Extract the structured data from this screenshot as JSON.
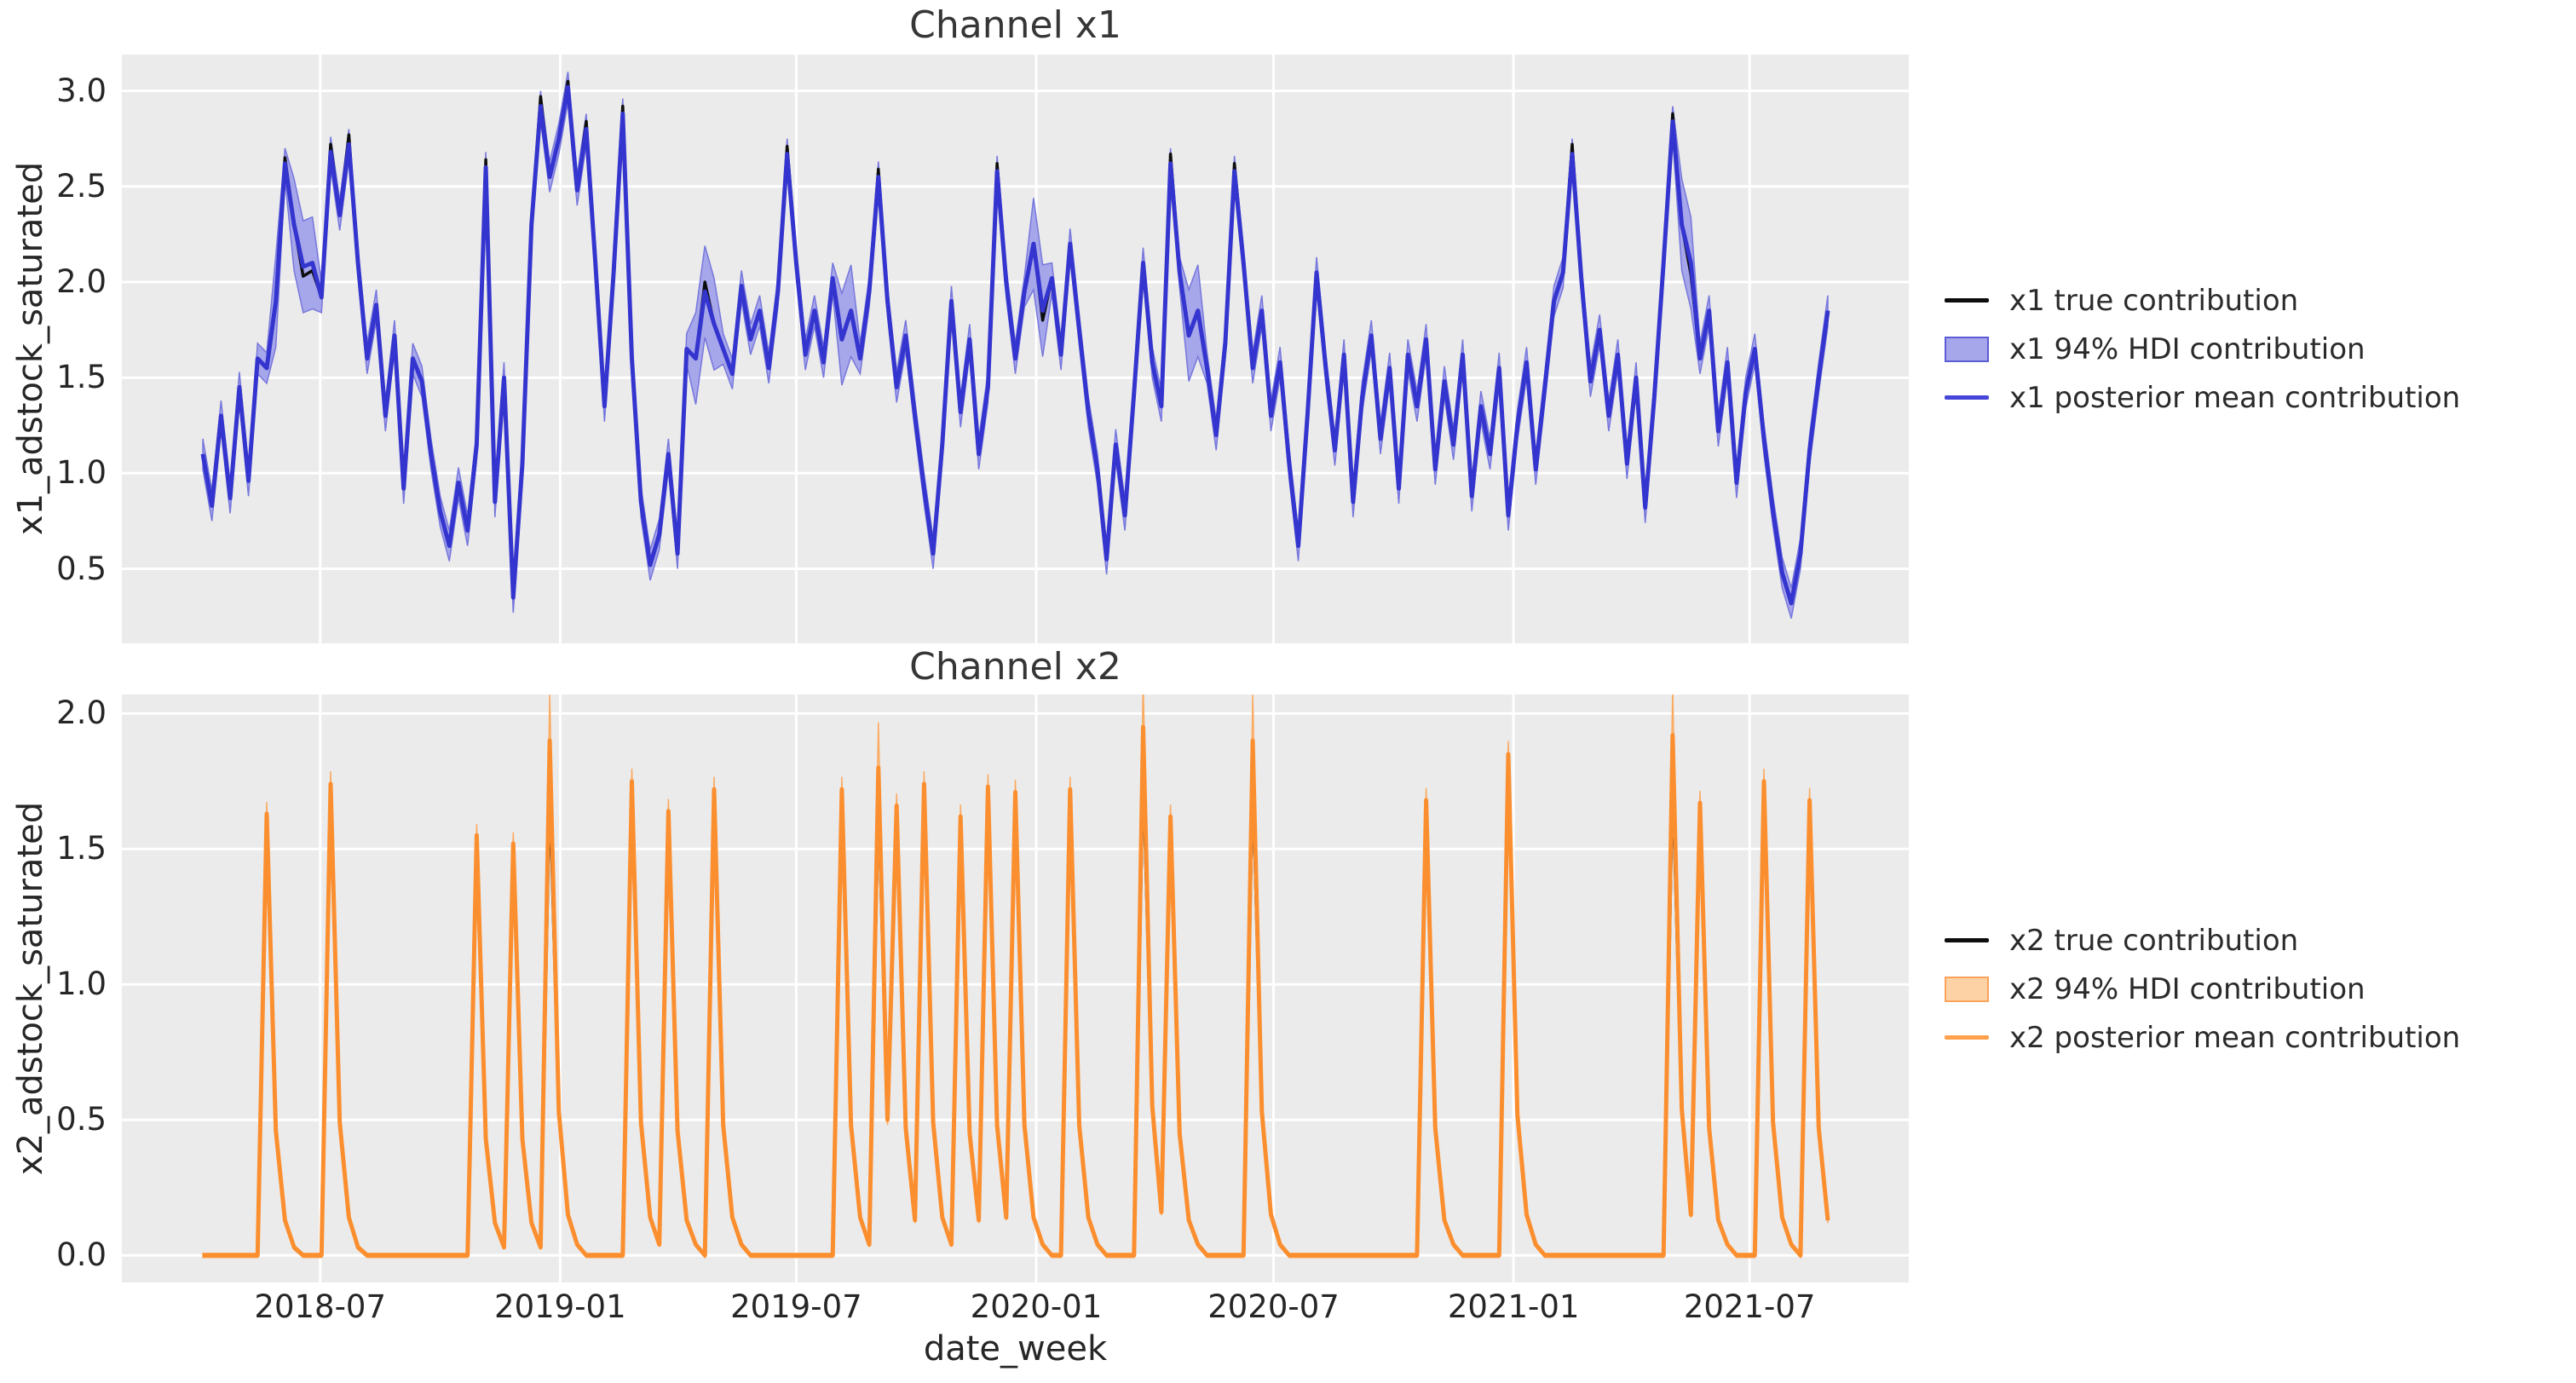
{
  "figure_title": "",
  "style_colors": {
    "panel_bg": "#ebebeb",
    "grid": "#ffffff",
    "text": "#262626"
  },
  "xaxis": {
    "label": "date_week",
    "n": 179,
    "start_date": "2018-04-02",
    "freq": "weekly",
    "ticks": [
      {
        "pos": 12.857,
        "label": "2018-07"
      },
      {
        "pos": 39.143,
        "label": "2019-01"
      },
      {
        "pos": 65.0,
        "label": "2019-07"
      },
      {
        "pos": 91.286,
        "label": "2020-01"
      },
      {
        "pos": 117.286,
        "label": "2020-07"
      },
      {
        "pos": 143.571,
        "label": "2021-01"
      },
      {
        "pos": 169.429,
        "label": "2021-07"
      }
    ]
  },
  "chart_data": [
    {
      "type": "line",
      "title": "Channel x1",
      "ylabel": "x1_adstock_saturated",
      "ylim": [
        0.11,
        3.19
      ],
      "yticks": [
        {
          "v": 0.5,
          "label": "0.5"
        },
        {
          "v": 1.0,
          "label": "1.0"
        },
        {
          "v": 1.5,
          "label": "1.5"
        },
        {
          "v": 2.0,
          "label": "2.0"
        },
        {
          "v": 2.5,
          "label": "2.5"
        },
        {
          "v": 3.0,
          "label": "3.0"
        }
      ],
      "colors": {
        "mean": "#3434cf",
        "band_fill": "#a6a6ea",
        "band_edge": "#7777dd",
        "true": "#0d0d0d"
      },
      "band": {
        "mode": "const",
        "default_half": 0.08,
        "wide_half": 0.24,
        "wide_indices": [
          8,
          10,
          11,
          12,
          54,
          55,
          56,
          70,
          71,
          91,
          92,
          108,
          109,
          162,
          163
        ]
      },
      "series": {
        "mean": [
          1.1,
          0.83,
          1.3,
          0.87,
          1.45,
          0.96,
          1.6,
          1.55,
          1.9,
          2.62,
          2.3,
          2.08,
          2.1,
          1.92,
          2.68,
          2.35,
          2.72,
          2.1,
          1.6,
          1.88,
          1.3,
          1.72,
          0.92,
          1.6,
          1.48,
          1.1,
          0.8,
          0.62,
          0.95,
          0.7,
          1.15,
          2.6,
          0.85,
          1.5,
          0.35,
          1.05,
          2.3,
          2.92,
          2.55,
          2.75,
          3.02,
          2.48,
          2.8,
          2.1,
          1.35,
          2.05,
          2.88,
          1.6,
          0.85,
          0.52,
          0.68,
          1.1,
          0.58,
          1.65,
          1.6,
          1.95,
          1.78,
          1.65,
          1.52,
          1.98,
          1.7,
          1.85,
          1.55,
          1.95,
          2.67,
          2.1,
          1.62,
          1.85,
          1.58,
          2.02,
          1.7,
          1.85,
          1.6,
          1.95,
          2.55,
          1.9,
          1.45,
          1.72,
          1.3,
          0.92,
          0.58,
          1.15,
          1.9,
          1.32,
          1.7,
          1.1,
          1.45,
          2.58,
          2.0,
          1.6,
          1.95,
          2.2,
          1.85,
          2.02,
          1.62,
          2.2,
          1.75,
          1.32,
          1.02,
          0.55,
          1.15,
          0.78,
          1.42,
          2.1,
          1.58,
          1.35,
          2.62,
          2.05,
          1.72,
          1.85,
          1.55,
          1.2,
          1.68,
          2.58,
          2.1,
          1.55,
          1.85,
          1.3,
          1.58,
          1.05,
          0.62,
          1.3,
          2.05,
          1.55,
          1.12,
          1.62,
          0.85,
          1.4,
          1.72,
          1.18,
          1.55,
          0.92,
          1.62,
          1.35,
          1.7,
          1.02,
          1.48,
          1.15,
          1.62,
          0.88,
          1.35,
          1.1,
          1.55,
          0.78,
          1.25,
          1.58,
          1.02,
          1.45,
          1.9,
          2.05,
          2.67,
          2.02,
          1.48,
          1.75,
          1.3,
          1.62,
          1.05,
          1.5,
          0.82,
          1.4,
          2.1,
          2.84,
          2.3,
          2.1,
          1.6,
          1.85,
          1.22,
          1.58,
          0.95,
          1.42,
          1.65,
          1.18,
          0.8,
          0.48,
          0.32,
          0.58,
          1.12,
          1.5,
          1.85
        ],
        "true_offsets": {
          "9": 0.03,
          "11": -0.05,
          "12": -0.04,
          "14": 0.04,
          "16": 0.05,
          "31": 0.04,
          "37": 0.05,
          "40": 0.03,
          "42": 0.04,
          "46": 0.04,
          "55": 0.05,
          "64": 0.04,
          "74": 0.04,
          "87": 0.04,
          "92": -0.05,
          "106": 0.05,
          "113": 0.04,
          "150": 0.05,
          "161": 0.04,
          "163": -0.06
        }
      },
      "legend_items": [
        {
          "type": "line",
          "color": "#0d0d0d",
          "label": "x1 true contribution"
        },
        {
          "type": "patch",
          "fill": "#a6a6ea",
          "edge": "#5c5cd6",
          "label": "x1 94% HDI contribution"
        },
        {
          "type": "line",
          "color": "#4646d8",
          "label": "x1 posterior mean contribution"
        }
      ]
    },
    {
      "type": "line",
      "title": "Channel x2",
      "ylabel": "x2_adstock_saturated",
      "ylim": [
        -0.1,
        2.07
      ],
      "yticks": [
        {
          "v": 0.0,
          "label": "0.0"
        },
        {
          "v": 0.5,
          "label": "0.5"
        },
        {
          "v": 1.0,
          "label": "1.0"
        },
        {
          "v": 1.5,
          "label": "1.5"
        },
        {
          "v": 2.0,
          "label": "2.0"
        }
      ],
      "colors": {
        "mean": "#fb8e2e",
        "band_fill": "#fdd3a5",
        "band_edge": "#fbaa60",
        "true": "#0d0d0d"
      },
      "band": {
        "mode": "scaled",
        "abs": 0.008,
        "rel": 0.022,
        "wide_upper_add": 0.12,
        "lower_min": -0.02,
        "wide_indices": [
          38,
          74,
          103,
          115,
          161
        ]
      },
      "series": {
        "mean": [
          0,
          0,
          0,
          0,
          0,
          0,
          0,
          1.63,
          0.46,
          0.13,
          0.03,
          0,
          0,
          0,
          1.74,
          0.49,
          0.14,
          0.03,
          0,
          0,
          0,
          0,
          0,
          0,
          0,
          0,
          0,
          0,
          0,
          0,
          1.55,
          0.43,
          0.12,
          0.03,
          1.52,
          0.43,
          0.12,
          0.03,
          1.9,
          0.53,
          0.15,
          0.04,
          0,
          0,
          0,
          0,
          0,
          1.75,
          0.49,
          0.14,
          0.04,
          1.64,
          0.46,
          0.13,
          0.04,
          0,
          1.72,
          0.48,
          0.14,
          0.04,
          0,
          0,
          0,
          0,
          0,
          0,
          0,
          0,
          0,
          0,
          1.72,
          0.48,
          0.14,
          0.04,
          1.8,
          0.5,
          1.66,
          0.47,
          0.13,
          1.74,
          0.49,
          0.14,
          0.04,
          1.62,
          0.45,
          0.13,
          1.73,
          0.48,
          0.14,
          1.71,
          0.48,
          0.14,
          0.04,
          0,
          0,
          1.72,
          0.48,
          0.14,
          0.04,
          0,
          0,
          0,
          0,
          1.95,
          0.55,
          0.16,
          1.62,
          0.45,
          0.13,
          0.04,
          0,
          0,
          0,
          0,
          0,
          1.9,
          0.53,
          0.15,
          0.04,
          0,
          0,
          0,
          0,
          0,
          0,
          0,
          0,
          0,
          0,
          0,
          0,
          0,
          0,
          0,
          1.68,
          0.47,
          0.13,
          0.04,
          0,
          0,
          0,
          0,
          0,
          1.85,
          0.52,
          0.15,
          0.04,
          0,
          0,
          0,
          0,
          0,
          0,
          0,
          0,
          0,
          0,
          0,
          0,
          0,
          0,
          1.92,
          0.54,
          0.15,
          1.67,
          0.47,
          0.13,
          0.04,
          0,
          0,
          0,
          1.75,
          0.49,
          0.14,
          0.04,
          0,
          1.68,
          0.47,
          0.13
        ],
        "true_offsets": {
          "7": -0.05,
          "14": -0.05,
          "30": -0.04,
          "34": -0.04,
          "38": -0.17,
          "47": -0.05,
          "51": -0.04,
          "56": -0.05,
          "70": -0.05,
          "74": -0.12,
          "76": -0.04,
          "79": -0.05,
          "83": -0.04,
          "86": -0.05,
          "89": -0.05,
          "95": -0.05,
          "103": -0.15,
          "106": -0.04,
          "115": -0.14,
          "134": -0.05,
          "143": -0.06,
          "161": -0.16,
          "164": -0.04,
          "171": -0.05,
          "176": -0.05
        }
      },
      "legend_items": [
        {
          "type": "line",
          "color": "#0d0d0d",
          "label": "x2 true contribution"
        },
        {
          "type": "patch",
          "fill": "#fdd3a5",
          "edge": "#fba35c",
          "label": "x2 94% HDI contribution"
        },
        {
          "type": "line",
          "color": "#ffa04d",
          "label": "x2 posterior mean contribution"
        }
      ]
    }
  ]
}
